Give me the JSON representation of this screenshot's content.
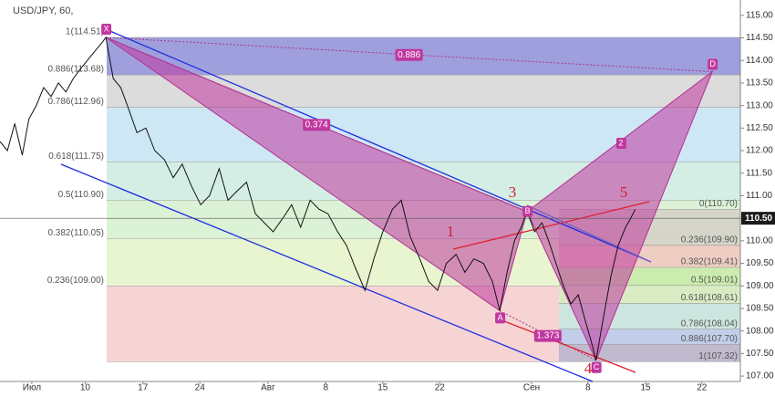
{
  "header": {
    "symbol": "USD/JPY, 60,"
  },
  "chart_data": {
    "type": "line",
    "xlim": [
      0,
      100
    ],
    "ylim": [
      106.88,
      115.34
    ],
    "xticks": [
      {
        "value": 4.3,
        "label": "Июл"
      },
      {
        "value": 11.5,
        "label": "10"
      },
      {
        "value": 19.3,
        "label": "17"
      },
      {
        "value": 27,
        "label": "24"
      },
      {
        "value": 36.2,
        "label": "Авг"
      },
      {
        "value": 44,
        "label": "8"
      },
      {
        "value": 51.7,
        "label": "15"
      },
      {
        "value": 59.4,
        "label": "22"
      },
      {
        "value": 71.8,
        "label": "Сен"
      },
      {
        "value": 79.4,
        "label": "8"
      },
      {
        "value": 87.2,
        "label": "15"
      },
      {
        "value": 94.8,
        "label": "22"
      }
    ],
    "yticks": [
      {
        "value": 107,
        "label": "107.00"
      },
      {
        "value": 107.5,
        "label": "107.50"
      },
      {
        "value": 108,
        "label": "108.00"
      },
      {
        "value": 108.5,
        "label": "108.50"
      },
      {
        "value": 109,
        "label": "109.00"
      },
      {
        "value": 109.5,
        "label": "109.50"
      },
      {
        "value": 110,
        "label": "110.00"
      },
      {
        "value": 110.5,
        "label": "110.50"
      },
      {
        "value": 111,
        "label": "111.00"
      },
      {
        "value": 111.5,
        "label": "111.50"
      },
      {
        "value": 112,
        "label": "112.00"
      },
      {
        "value": 112.5,
        "label": "112.50"
      },
      {
        "value": 113,
        "label": "113.00"
      },
      {
        "value": 113.5,
        "label": "113.50"
      },
      {
        "value": 114,
        "label": "114.00"
      },
      {
        "value": 114.5,
        "label": "114.50"
      },
      {
        "value": 115,
        "label": "115.00"
      }
    ],
    "series": [
      {
        "color": "#111111",
        "x": [
          0,
          1,
          2,
          3,
          3.9,
          4.9,
          5.9,
          6.9,
          7.9,
          8.9,
          9.9,
          10.8,
          11.8,
          12.8,
          13.8,
          14.3,
          15.3,
          16.3,
          17.2,
          18.5,
          19.7,
          20.9,
          22.2,
          23.4,
          24.6,
          25.9,
          27.1,
          28.3,
          29.6,
          30.8,
          32,
          33.3,
          34.5,
          35.7,
          36.9,
          38.2,
          39.4,
          40.6,
          41.9,
          43.1,
          44.3,
          45.6,
          46.8,
          48,
          49.3,
          50.5,
          51.7,
          53,
          54.2,
          55.4,
          56.7,
          57.9,
          59.1,
          60.3,
          61.6,
          62.8,
          64,
          65.3,
          66.5,
          67.5,
          68.5,
          69.5,
          70.4,
          71.2,
          72.2,
          73.2,
          74.1,
          75.1,
          76.1,
          77.1,
          78.1,
          79.1,
          79.8,
          80.5,
          81.5,
          82.5,
          83.5,
          84.5,
          85.2,
          85.8
        ],
        "values": [
          112.2,
          112,
          112.6,
          111.9,
          112.7,
          113,
          113.4,
          113.2,
          113.5,
          113.3,
          113.6,
          113.8,
          114,
          114.2,
          114.4,
          114.51,
          113.6,
          113.4,
          113,
          112.4,
          112.5,
          112,
          111.8,
          111.4,
          111.7,
          111.2,
          110.8,
          111,
          111.6,
          110.9,
          111.1,
          111.3,
          110.6,
          110.4,
          110.2,
          110.5,
          110.8,
          110.3,
          110.9,
          110.7,
          110.6,
          110.2,
          109.9,
          109.4,
          108.9,
          109.6,
          110.2,
          110.7,
          110.9,
          110.1,
          109.6,
          109.1,
          108.9,
          109.5,
          109.7,
          109.3,
          109.6,
          109.5,
          109.1,
          108.45,
          109.3,
          110,
          110.3,
          110.65,
          110.2,
          110.4,
          110,
          109.5,
          109,
          108.6,
          108.8,
          108.2,
          107.8,
          107.35,
          108.3,
          109.2,
          109.9,
          110.3,
          110.5,
          110.7
        ]
      }
    ],
    "last_price": {
      "value": 110.5,
      "label": "110.50"
    },
    "fib_left": [
      {
        "value": 114.51,
        "label": "1(114.51)",
        "color": "#8e8ed8"
      },
      {
        "value": 113.68,
        "label": "0.886(113.68)",
        "color": "#d6d6d6"
      },
      {
        "value": 112.96,
        "label": "0.786(112.96)",
        "color": "#c6e3f3"
      },
      {
        "value": 111.75,
        "label": "0.618(111.75)",
        "color": "#cdebe1"
      },
      {
        "value": 110.9,
        "label": "0.5(110.90)",
        "color": "#d5f0d0"
      },
      {
        "value": 110.05,
        "label": "0.382(110.05)",
        "color": "#e4f3c8"
      },
      {
        "value": 109,
        "label": "0.236(109.00)",
        "color": "#f4cccc"
      },
      {
        "value": 107.32
      }
    ],
    "fib_right": [
      {
        "value": 110.7,
        "label": "0(110.70)",
        "color": "#d4d0c8"
      },
      {
        "value": 109.9,
        "label": "0.236(109.90)",
        "color": "#efc6c0"
      },
      {
        "value": 109.41,
        "label": "0.382(109.41)",
        "color": "#c6eaa8"
      },
      {
        "value": 109.01,
        "label": "0.5(109.01)",
        "color": "#d2eec0"
      },
      {
        "value": 108.61,
        "label": "0.618(108.61)",
        "color": "#c5e7e1"
      },
      {
        "value": 108.04,
        "label": "0.786(108.04)",
        "color": "#b9cdec"
      },
      {
        "value": 107.7,
        "label": "0.886(107.70)",
        "color": "#b7b4cc"
      },
      {
        "value": 107.32,
        "label": "1(107.32)"
      }
    ],
    "pattern": [
      {
        "label": "X",
        "x": 14.3,
        "y": 114.51
      },
      {
        "label": "A",
        "x": 67.5,
        "y": 108.45
      },
      {
        "label": "B",
        "x": 71.2,
        "y": 110.65
      },
      {
        "label": "C",
        "x": 80.5,
        "y": 107.35
      },
      {
        "label": "D",
        "x": 96.2,
        "y": 113.75
      }
    ],
    "ratios": [
      "0.886",
      "0.374",
      "1.373"
    ],
    "waves": [
      "1",
      "2",
      "3",
      "4",
      "5"
    ]
  }
}
